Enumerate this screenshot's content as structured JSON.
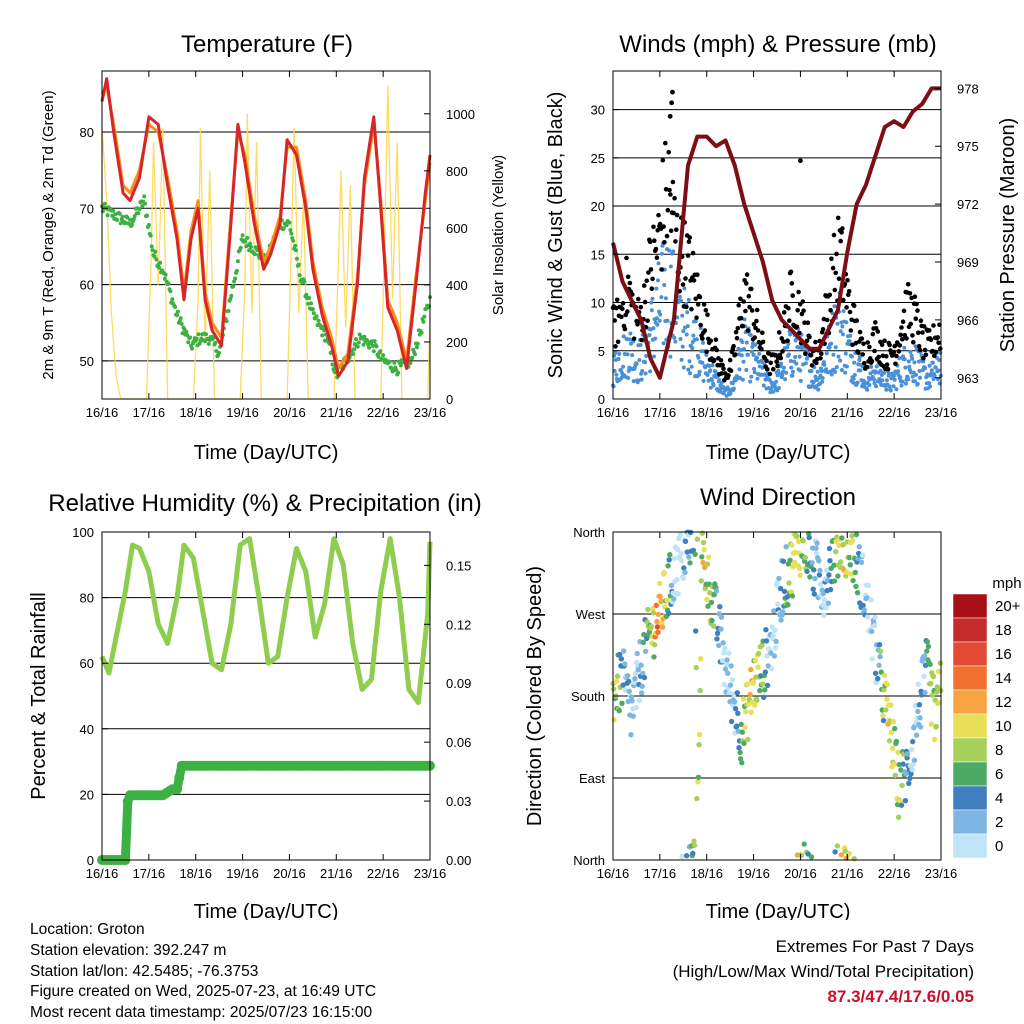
{
  "chart_data": [
    {
      "id": "temp",
      "type": "line",
      "title": "Temperature (F)",
      "xlabel": "Time (Day/UTC)",
      "ylabel": "2m & 9m T (Red, Orange) & 2m Td (Green)",
      "ylabel_right": "Solar Insolation (Yellow)",
      "x_ticks": [
        "16/16",
        "17/16",
        "18/16",
        "19/16",
        "20/16",
        "21/16",
        "22/16",
        "23/16"
      ],
      "y_ticks": [
        "50",
        "60",
        "70",
        "80"
      ],
      "y_ticks_right": [
        "0",
        "200",
        "400",
        "600",
        "800",
        "1000"
      ],
      "ylim": [
        45,
        88
      ],
      "ylim_right": [
        0,
        1150
      ],
      "grid": true,
      "series": [
        {
          "color": "#d62728",
          "axis": "left",
          "x": [
            0,
            0.1,
            0.25,
            0.45,
            0.6,
            0.8,
            1.0,
            1.2,
            1.4,
            1.6,
            1.75,
            1.9,
            2.05,
            2.2,
            2.35,
            2.55,
            2.75,
            2.9,
            3.05,
            3.25,
            3.45,
            3.6,
            3.8,
            3.95,
            4.15,
            4.35,
            4.5,
            4.7,
            4.9,
            5.05,
            5.25,
            5.45,
            5.6,
            5.8,
            5.95,
            6.1,
            6.3,
            6.5,
            6.7,
            6.9,
            7.0
          ],
          "y": [
            84,
            87,
            80,
            72,
            71,
            74,
            82,
            81,
            73,
            66,
            58,
            66,
            70,
            58,
            54,
            52,
            68,
            81,
            76,
            68,
            62,
            64,
            68,
            79,
            77,
            70,
            62,
            56,
            52,
            48,
            50,
            60,
            74,
            82,
            70,
            57,
            54,
            49,
            60,
            72,
            77
          ]
        },
        {
          "color": "#ff8c1a",
          "axis": "left",
          "x": [
            0,
            0.1,
            0.25,
            0.45,
            0.6,
            0.8,
            1.0,
            1.2,
            1.4,
            1.6,
            1.75,
            1.9,
            2.05,
            2.2,
            2.35,
            2.55,
            2.75,
            2.9,
            3.05,
            3.25,
            3.45,
            3.6,
            3.8,
            3.95,
            4.15,
            4.35,
            4.5,
            4.7,
            4.9,
            5.05,
            5.25,
            5.45,
            5.6,
            5.8,
            5.95,
            6.1,
            6.3,
            6.5,
            6.7,
            6.9,
            7.0
          ],
          "y": [
            85,
            86,
            81,
            73,
            72,
            75,
            81,
            80,
            74,
            67,
            59,
            67,
            71,
            59,
            55,
            53,
            69,
            80,
            77,
            69,
            63,
            65,
            69,
            78,
            78,
            71,
            63,
            57,
            53,
            49,
            51,
            61,
            73,
            81,
            71,
            58,
            55,
            50,
            61,
            71,
            76
          ]
        },
        {
          "color": "#3cb043",
          "axis": "left",
          "x": [
            0,
            0.3,
            0.6,
            0.9,
            1.1,
            1.3,
            1.6,
            1.9,
            2.1,
            2.3,
            2.5,
            2.8,
            3.0,
            3.2,
            3.5,
            3.8,
            4.0,
            4.2,
            4.5,
            4.8,
            5.0,
            5.2,
            5.5,
            5.8,
            6.0,
            6.3,
            6.6,
            6.8,
            7.0
          ],
          "y": [
            70,
            69,
            68,
            71,
            64,
            62,
            56,
            52,
            53,
            53,
            51,
            60,
            66,
            65,
            63,
            68,
            68,
            62,
            56,
            53,
            48,
            50,
            53,
            52,
            50,
            49,
            50,
            54,
            58
          ]
        },
        {
          "color": "#ffd84d",
          "axis": "right",
          "x": [
            0,
            0.1,
            0.2,
            0.3,
            0.4,
            0.95,
            1.05,
            1.1,
            1.2,
            1.3,
            1.4,
            1.95,
            2.05,
            2.1,
            2.2,
            2.3,
            2.4,
            2.95,
            3.05,
            3.1,
            3.2,
            3.3,
            3.4,
            3.95,
            4.05,
            4.1,
            4.2,
            4.3,
            4.4,
            4.95,
            5.05,
            5.1,
            5.2,
            5.3,
            5.4,
            5.95,
            6.05,
            6.1,
            6.2,
            6.3,
            6.4,
            6.95,
            7.0
          ],
          "y": [
            950,
            700,
            300,
            80,
            0,
            0,
            500,
            900,
            400,
            950,
            0,
            0,
            350,
            950,
            200,
            800,
            0,
            0,
            400,
            1000,
            300,
            900,
            0,
            0,
            600,
            950,
            300,
            700,
            0,
            0,
            500,
            800,
            250,
            750,
            0,
            0,
            700,
            1100,
            350,
            900,
            0,
            0,
            300
          ]
        }
      ]
    },
    {
      "id": "wind",
      "type": "scatter",
      "title": "Winds (mph) & Pressure (mb)",
      "xlabel": "Time (Day/UTC)",
      "ylabel": "Sonic Wind & Gust (Blue, Black)",
      "ylabel_right": "Station Pressure (Maroon)",
      "x_ticks": [
        "16/16",
        "17/16",
        "18/16",
        "19/16",
        "20/16",
        "21/16",
        "22/16",
        "23/16"
      ],
      "y_ticks": [
        "0",
        "5",
        "10",
        "15",
        "20",
        "25",
        "30"
      ],
      "y_ticks_right": [
        "963",
        "966",
        "969",
        "972",
        "975",
        "978"
      ],
      "ylim": [
        0,
        34
      ],
      "ylim_right": [
        961.9,
        978.9
      ],
      "grid": true,
      "series": [
        {
          "color": "#7b0f14",
          "axis": "right",
          "x": [
            0,
            0.2,
            0.4,
            0.6,
            0.8,
            1.0,
            1.3,
            1.6,
            1.8,
            2.0,
            2.2,
            2.4,
            2.6,
            2.8,
            3.0,
            3.2,
            3.4,
            3.6,
            3.8,
            4.0,
            4.2,
            4.4,
            4.6,
            4.8,
            5.0,
            5.2,
            5.4,
            5.6,
            5.8,
            6.0,
            6.2,
            6.4,
            6.6,
            6.8,
            7.0
          ],
          "y": [
            970,
            968,
            967,
            966,
            964,
            963,
            966,
            974,
            975.5,
            975.5,
            975,
            975.3,
            974,
            972,
            970.5,
            969,
            967,
            966,
            965.5,
            965,
            964.5,
            964.5,
            965.5,
            966.5,
            969.5,
            972,
            973,
            974.5,
            976,
            976.3,
            976.0,
            976.8,
            977.2,
            978,
            978
          ]
        },
        {
          "color": "#000000",
          "axis": "left",
          "base": [
            8,
            9,
            11,
            13,
            10,
            9,
            10,
            14,
            16,
            18,
            22,
            24,
            20,
            17,
            16,
            15,
            13,
            11,
            9,
            7,
            6,
            4,
            3,
            3,
            5,
            9,
            12,
            11,
            9,
            7,
            5,
            4,
            4,
            6,
            8,
            11,
            12,
            10,
            8,
            6,
            5,
            6,
            9,
            12,
            15,
            17,
            13,
            10,
            8,
            6,
            5,
            6,
            7,
            6,
            5,
            5,
            6,
            8,
            10,
            10,
            9,
            7,
            6,
            6,
            7,
            8
          ]
        },
        {
          "color": "#4a90d9",
          "axis": "left",
          "base": [
            4,
            5,
            6,
            7,
            6,
            5,
            6,
            8,
            10,
            12,
            14,
            15,
            13,
            11,
            10,
            9,
            8,
            7,
            5,
            4,
            3,
            2,
            1,
            1,
            2,
            5,
            7,
            6,
            5,
            4,
            3,
            2,
            2,
            3,
            5,
            6,
            7,
            6,
            5,
            4,
            3,
            3,
            5,
            7,
            9,
            10,
            8,
            6,
            5,
            4,
            3,
            3,
            4,
            3,
            3,
            2,
            3,
            4,
            5,
            5,
            5,
            4,
            3,
            3,
            4,
            5
          ]
        }
      ]
    },
    {
      "id": "rh",
      "type": "line",
      "title": "Relative Humidity (%) & Precipitation (in)",
      "xlabel": "Time (Day/UTC)",
      "ylabel": "Percent & Total Rainfall",
      "x_ticks": [
        "16/16",
        "17/16",
        "18/16",
        "19/16",
        "20/16",
        "21/16",
        "22/16",
        "23/16"
      ],
      "y_ticks": [
        "0",
        "20",
        "40",
        "60",
        "80",
        "100"
      ],
      "y_ticks_right": [
        "0.00",
        "0.03",
        "0.06",
        "0.09",
        "0.12",
        "0.15"
      ],
      "ylim": [
        0,
        100
      ],
      "ylim_right": [
        0,
        0.167
      ],
      "grid": true,
      "series": [
        {
          "color": "#8fcd4f",
          "axis": "left",
          "x": [
            0,
            0.15,
            0.3,
            0.5,
            0.65,
            0.8,
            1.0,
            1.2,
            1.4,
            1.6,
            1.75,
            1.95,
            2.15,
            2.35,
            2.55,
            2.75,
            2.95,
            3.15,
            3.35,
            3.55,
            3.75,
            3.95,
            4.15,
            4.35,
            4.55,
            4.75,
            4.95,
            5.15,
            5.35,
            5.55,
            5.75,
            5.95,
            6.15,
            6.35,
            6.55,
            6.75,
            6.95,
            7.0
          ],
          "y": [
            62,
            57,
            68,
            82,
            96,
            95,
            88,
            72,
            66,
            80,
            96,
            92,
            76,
            60,
            58,
            72,
            96,
            98,
            80,
            60,
            62,
            80,
            95,
            88,
            68,
            78,
            98,
            90,
            66,
            52,
            55,
            82,
            98,
            80,
            52,
            48,
            75,
            97
          ]
        },
        {
          "color": "#3cb043",
          "axis": "right",
          "x": [
            0,
            0.5,
            0.55,
            0.6,
            0.8,
            1.0,
            1.3,
            1.5,
            1.6,
            1.7,
            1.75,
            2.0,
            3.0,
            4.0,
            5.0,
            6.0,
            7.0
          ],
          "y": [
            0,
            0,
            0.03,
            0.033,
            0.033,
            0.033,
            0.033,
            0.036,
            0.036,
            0.048,
            0.048,
            0.048,
            0.048,
            0.048,
            0.048,
            0.048,
            0.048
          ]
        }
      ]
    },
    {
      "id": "dir",
      "type": "scatter",
      "title": "Wind Direction",
      "xlabel": "Time (Day/UTC)",
      "ylabel": "Direction (Colored By Speed)",
      "x_ticks": [
        "16/16",
        "17/16",
        "18/16",
        "19/16",
        "20/16",
        "21/16",
        "22/16",
        "23/16"
      ],
      "y_ticks": [
        "North",
        "East",
        "South",
        "West",
        "North"
      ],
      "ylim": [
        0,
        360
      ],
      "grid": true,
      "legend": {
        "title": "mph",
        "labels": [
          "20+",
          "18",
          "16",
          "14",
          "12",
          "10",
          "8",
          "6",
          "4",
          "2",
          "0"
        ],
        "colors": [
          "#a50f15",
          "#c62b2b",
          "#e34a33",
          "#f1702f",
          "#f9a241",
          "#e8df57",
          "#a6d05a",
          "#4daa64",
          "#3f7fbf",
          "#7db6e3",
          "#bfe3f7"
        ]
      },
      "series": [
        {
          "name": "direction",
          "axis": "left",
          "keys": [
            [
              0,
              180
            ],
            [
              0.2,
              200
            ],
            [
              0.4,
              160
            ],
            [
              0.6,
              215
            ],
            [
              0.8,
              250
            ],
            [
              1.0,
              270
            ],
            [
              1.2,
              300
            ],
            [
              1.4,
              325
            ],
            [
              1.6,
              345
            ],
            [
              1.75,
              360
            ],
            [
              1.8,
              15
            ],
            [
              1.9,
              335
            ],
            [
              2.1,
              290
            ],
            [
              2.3,
              240
            ],
            [
              2.45,
              200
            ],
            [
              2.6,
              170
            ],
            [
              2.75,
              140
            ],
            [
              2.9,
              170
            ],
            [
              3.0,
              195
            ],
            [
              3.2,
              210
            ],
            [
              3.4,
              240
            ],
            [
              3.6,
              300
            ],
            [
              3.8,
              320
            ],
            [
              3.95,
              345
            ],
            [
              4.1,
              350
            ],
            [
              4.3,
              320
            ],
            [
              4.5,
              300
            ],
            [
              4.7,
              335
            ],
            [
              4.9,
              350
            ],
            [
              5.1,
              340
            ],
            [
              5.3,
              310
            ],
            [
              5.5,
              260
            ],
            [
              5.7,
              200
            ],
            [
              5.9,
              150
            ],
            [
              6.1,
              80
            ],
            [
              6.3,
              100
            ],
            [
              6.5,
              160
            ],
            [
              6.7,
              210
            ],
            [
              6.9,
              150
            ],
            [
              7.0,
              200
            ]
          ]
        }
      ]
    }
  ],
  "footer": {
    "location": "Location: Groton",
    "elevation": "Station elevation: 392.247 m",
    "latlon": "Station lat/lon: 42.5485; -76.3753",
    "created": "Figure created on Wed, 2025-07-23, at 16:49 UTC",
    "recent": "Most recent data timestamp: 2025/07/23 16:15:00"
  },
  "extremes": {
    "title": "Extremes For Past 7 Days",
    "subtitle": "(High/Low/Max Wind/Total Precipitation)",
    "values": "87.3/47.4/17.6/0.05"
  }
}
